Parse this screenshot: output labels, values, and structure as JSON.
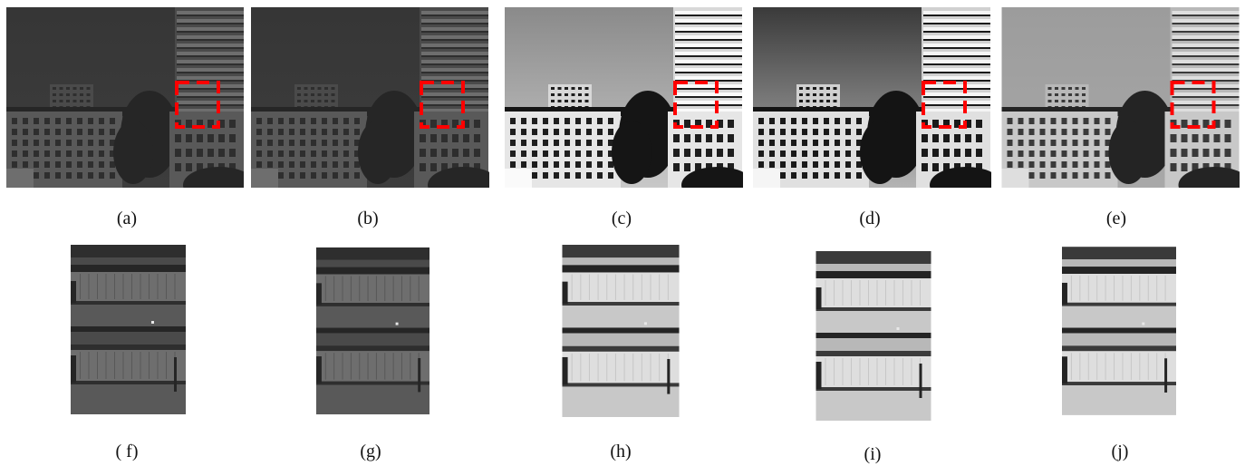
{
  "figure": {
    "panels": [
      {
        "id": "a",
        "label": "(a)",
        "kind": "scene",
        "tone": "dark"
      },
      {
        "id": "b",
        "label": "(b)",
        "kind": "scene",
        "tone": "dark"
      },
      {
        "id": "c",
        "label": "(c)",
        "kind": "scene",
        "tone": "high-contrast"
      },
      {
        "id": "d",
        "label": "(d)",
        "kind": "scene",
        "tone": "high-contrast-dark-sky"
      },
      {
        "id": "e",
        "label": "(e)",
        "kind": "scene",
        "tone": "balanced"
      },
      {
        "id": "f",
        "label": "( f)",
        "kind": "crop",
        "tone": "dark"
      },
      {
        "id": "g",
        "label": "(g)",
        "kind": "crop",
        "tone": "dark"
      },
      {
        "id": "h",
        "label": "(h)",
        "kind": "crop",
        "tone": "bright"
      },
      {
        "id": "i",
        "label": "(i)",
        "kind": "crop",
        "tone": "bright"
      },
      {
        "id": "j",
        "label": "(j)",
        "kind": "crop",
        "tone": "balanced"
      }
    ],
    "roi_box_color": "#ff0000"
  }
}
